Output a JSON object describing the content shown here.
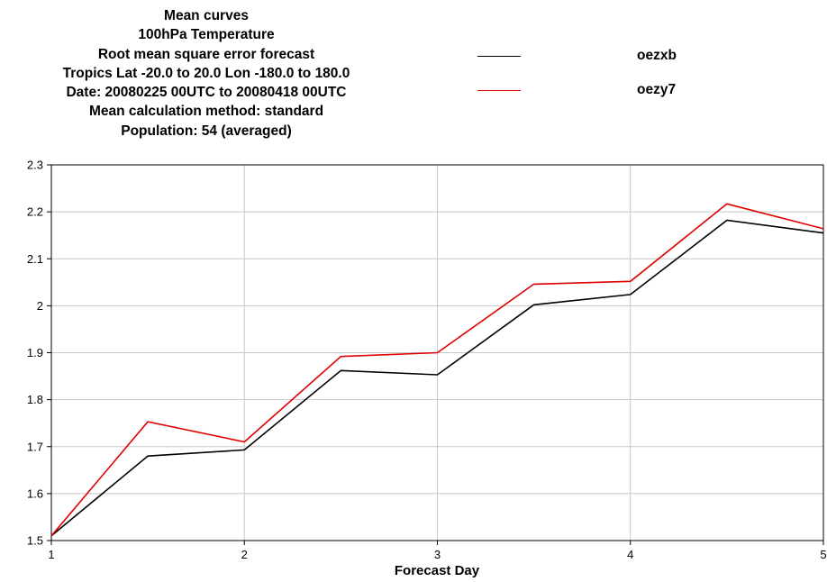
{
  "chart_data": {
    "type": "line",
    "title_lines": [
      "Mean curves",
      "100hPa Temperature",
      "Root mean square error forecast",
      "Tropics  Lat  -20.0 to 20.0 Lon  -180.0 to  180.0",
      "Date: 20080225 00UTC to 20080418 00UTC",
      "Mean calculation method: standard",
      "Population: 54 (averaged)"
    ],
    "xlabel": "Forecast Day",
    "ylabel": "",
    "xlim": [
      1,
      5
    ],
    "ylim": [
      1.5,
      2.3
    ],
    "x_ticks": [
      1,
      2,
      3,
      4,
      5
    ],
    "x_tick_labels": [
      "1",
      "2",
      "3",
      "4",
      "5"
    ],
    "y_ticks": [
      1.5,
      1.6,
      1.7,
      1.8,
      1.9,
      2.0,
      2.1,
      2.2,
      2.3
    ],
    "y_tick_labels": [
      "1.5",
      "1.6",
      "1.7",
      "1.8",
      "1.9",
      "2",
      "2.1",
      "2.2",
      "2.3"
    ],
    "grid": true,
    "legend_position": "top-right",
    "x": [
      1,
      1.5,
      2,
      2.5,
      3,
      3.5,
      4,
      4.5,
      5
    ],
    "series": [
      {
        "name": "oezxb",
        "color": "#000000",
        "values": [
          1.51,
          1.68,
          1.693,
          1.862,
          1.853,
          2.002,
          2.024,
          2.182,
          2.155
        ]
      },
      {
        "name": "oezy7",
        "color": "#e00000",
        "values": [
          1.51,
          1.753,
          1.71,
          1.892,
          1.9,
          2.046,
          2.052,
          2.217,
          2.164
        ]
      }
    ]
  }
}
